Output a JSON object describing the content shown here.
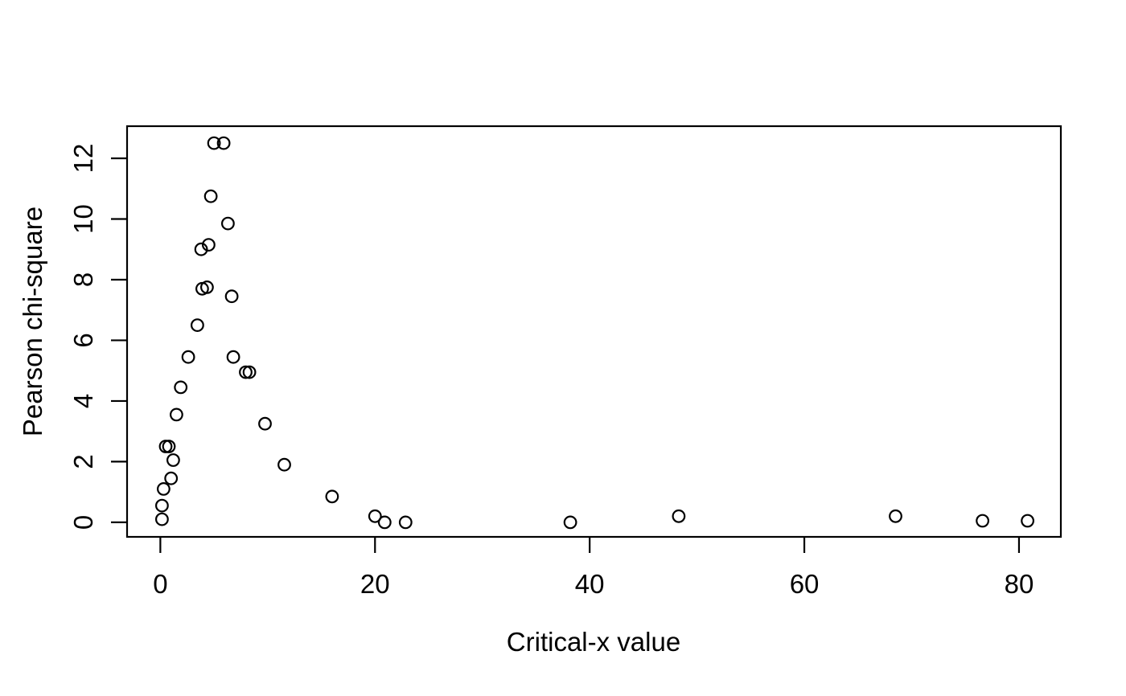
{
  "figure": {
    "background": "#ffffff",
    "foreground": "#000000"
  },
  "chart_data": {
    "type": "scatter",
    "title": "",
    "xlabel": "Critical-x value",
    "ylabel": "Pearson chi-square",
    "x_ticks": [
      0,
      20,
      40,
      60,
      80
    ],
    "y_ticks": [
      0,
      2,
      4,
      6,
      8,
      10,
      12
    ],
    "xlim": [
      -3.1,
      83.9
    ],
    "ylim": [
      -0.48,
      13.06
    ],
    "grid": false,
    "legend": null,
    "marker": "open-circle",
    "marker_color": "#000000",
    "points": [
      {
        "x": 0.15,
        "y": 0.1
      },
      {
        "x": 0.15,
        "y": 0.55
      },
      {
        "x": 0.3,
        "y": 1.1
      },
      {
        "x": 0.5,
        "y": 2.5
      },
      {
        "x": 0.8,
        "y": 2.5
      },
      {
        "x": 1.0,
        "y": 1.45
      },
      {
        "x": 1.2,
        "y": 2.05
      },
      {
        "x": 1.5,
        "y": 3.55
      },
      {
        "x": 1.9,
        "y": 4.45
      },
      {
        "x": 2.6,
        "y": 5.45
      },
      {
        "x": 3.45,
        "y": 6.5
      },
      {
        "x": 3.8,
        "y": 9.0
      },
      {
        "x": 3.9,
        "y": 7.7
      },
      {
        "x": 4.35,
        "y": 7.75
      },
      {
        "x": 4.5,
        "y": 9.15
      },
      {
        "x": 4.7,
        "y": 10.75
      },
      {
        "x": 5.0,
        "y": 12.5
      },
      {
        "x": 5.9,
        "y": 12.5
      },
      {
        "x": 6.3,
        "y": 9.85
      },
      {
        "x": 6.65,
        "y": 7.45
      },
      {
        "x": 6.8,
        "y": 5.45
      },
      {
        "x": 7.95,
        "y": 4.95
      },
      {
        "x": 8.3,
        "y": 4.95
      },
      {
        "x": 9.75,
        "y": 3.25
      },
      {
        "x": 11.55,
        "y": 1.9
      },
      {
        "x": 16.0,
        "y": 0.85
      },
      {
        "x": 20.0,
        "y": 0.2
      },
      {
        "x": 20.9,
        "y": 0.0
      },
      {
        "x": 22.85,
        "y": 0.0
      },
      {
        "x": 38.2,
        "y": 0.0
      },
      {
        "x": 48.3,
        "y": 0.2
      },
      {
        "x": 68.5,
        "y": 0.2
      },
      {
        "x": 76.6,
        "y": 0.05
      },
      {
        "x": 80.8,
        "y": 0.05
      }
    ]
  }
}
